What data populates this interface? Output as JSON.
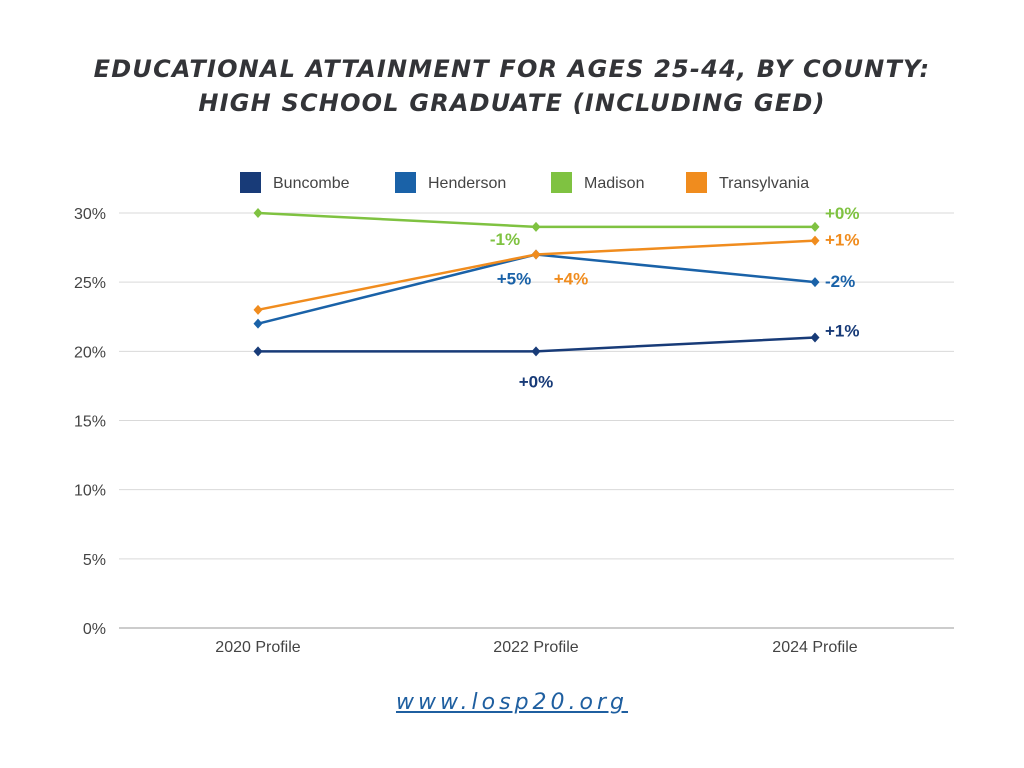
{
  "title": {
    "line1": "EDUCATIONAL ATTAINMENT FOR AGES 25-44, BY COUNTY:",
    "line2": "HIGH SCHOOL GRADUATE (INCLUDING GED)"
  },
  "footer": {
    "url": "www.losp20.org"
  },
  "colors": {
    "Buncombe": "#183b78",
    "Henderson": "#1a62a8",
    "Madison": "#7fc241",
    "Transylvania": "#f08c1e",
    "grid": "#d9d9d9",
    "axis_text": "#444444"
  },
  "chart_data": {
    "type": "line",
    "title": "EDUCATIONAL ATTAINMENT FOR AGES 25-44, BY COUNTY: HIGH SCHOOL GRADUATE (INCLUDING GED)",
    "categories": [
      "2020 Profile",
      "2022 Profile",
      "2024 Profile"
    ],
    "ylim": [
      0,
      30
    ],
    "yticks": [
      "0%",
      "5%",
      "10%",
      "15%",
      "20%",
      "25%",
      "30%"
    ],
    "grid": true,
    "legend_position": "top",
    "series": [
      {
        "name": "Buncombe",
        "values": [
          20,
          20,
          21
        ],
        "labels": [
          "",
          "+0%",
          "+1%"
        ]
      },
      {
        "name": "Henderson",
        "values": [
          22,
          27,
          25
        ],
        "labels": [
          "",
          "+5%",
          "-2%"
        ]
      },
      {
        "name": "Madison",
        "values": [
          30,
          29,
          29
        ],
        "labels": [
          "",
          "-1%",
          "+0%"
        ]
      },
      {
        "name": "Transylvania",
        "values": [
          23,
          27,
          28
        ],
        "labels": [
          "",
          "+4%",
          "+1%"
        ]
      }
    ]
  }
}
